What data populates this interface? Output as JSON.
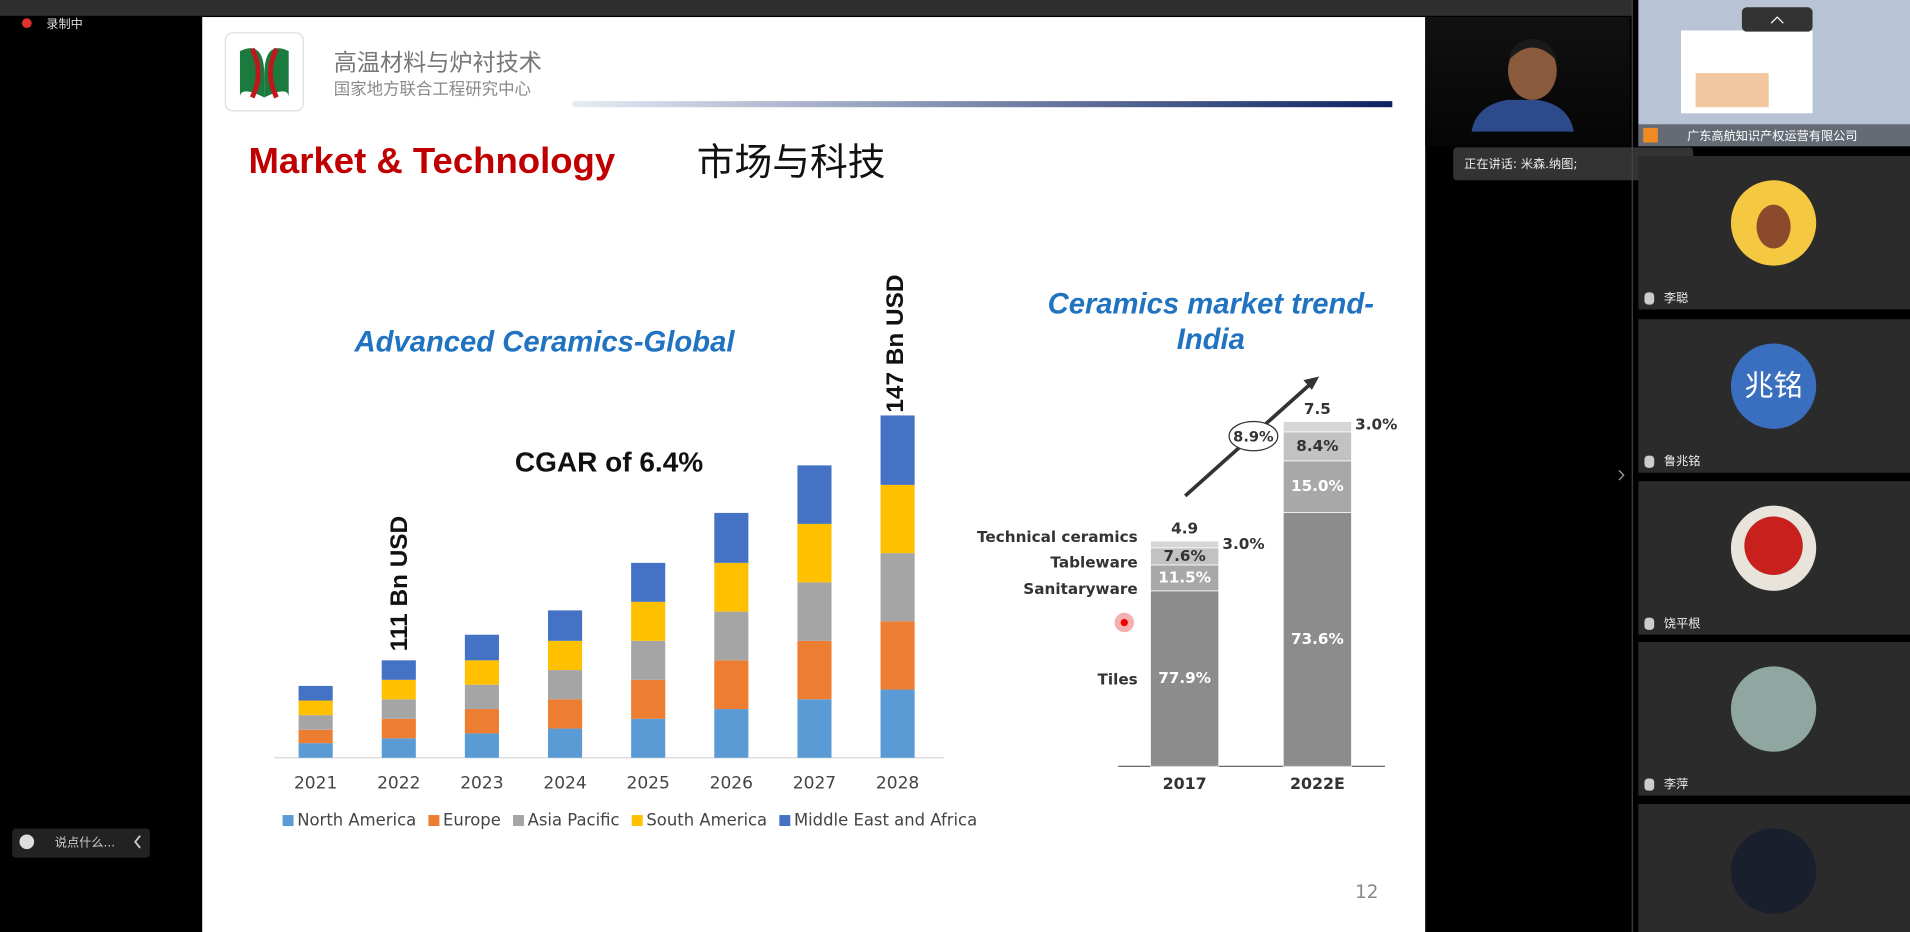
{
  "ui": {
    "recording": "录制中",
    "chat_placeholder": "说点什么...",
    "speaking": "正在讲话: 米森.纳图;",
    "share_owner": "广东高航知识产权运营有限公司",
    "participants": [
      {
        "name": "李聪"
      },
      {
        "name": "鲁兆铭",
        "avatar_text": "兆铭"
      },
      {
        "name": "饶平根"
      },
      {
        "name": "李萍"
      }
    ]
  },
  "slide": {
    "org_name": "高温材料与炉衬技术",
    "org_subtitle": "国家地方联合工程研究中心",
    "title": "Market & Technology",
    "title_cn": "市场与科技",
    "page_number": 12
  },
  "chart_data": [
    {
      "type": "stacked-bar",
      "title": "Advanced Ceramics-Global",
      "categories": [
        "2021",
        "2022",
        "2023",
        "2024",
        "2025",
        "2026",
        "2027",
        "2028"
      ],
      "series": [
        {
          "name": "North America",
          "color": "#5b9bd5",
          "values": [
            12,
            16,
            20,
            24,
            32,
            40,
            48,
            56
          ]
        },
        {
          "name": "Europe",
          "color": "#ed7d31",
          "values": [
            11,
            16,
            20,
            24,
            32,
            40,
            48,
            56
          ]
        },
        {
          "name": "Asia Pacific",
          "color": "#a5a5a5",
          "values": [
            12,
            16,
            20,
            24,
            32,
            40,
            48,
            56
          ]
        },
        {
          "name": "South America",
          "color": "#ffc000",
          "values": [
            12,
            16,
            20,
            24,
            32,
            40,
            48,
            56
          ]
        },
        {
          "name": "Middle East and Africa",
          "color": "#4472c4",
          "values": [
            12,
            16,
            21,
            25,
            32,
            41,
            48,
            57
          ]
        }
      ],
      "annotations": [
        "111 Bn USD",
        "147 Bn USD",
        "CGAR of 6.4%"
      ]
    },
    {
      "type": "share-bar",
      "title": [
        "Ceramics market trend-",
        "India"
      ],
      "categories": [
        "2017",
        "2022E"
      ],
      "totals": [
        4.9,
        7.5
      ],
      "series": [
        {
          "name": "Tiles",
          "color": "#8c8c8c",
          "values": [
            77.9,
            73.6
          ],
          "value_labels": [
            "77.9%",
            "73.6%"
          ]
        },
        {
          "name": "Sanitaryware",
          "color": "#a8a8a8",
          "values": [
            11.5,
            15.0
          ],
          "value_labels": [
            "11.5%",
            "15.0%"
          ]
        },
        {
          "name": "Tableware",
          "color": "#c2c2c2",
          "values": [
            7.6,
            8.4
          ],
          "value_labels": [
            "7.6%",
            "8.4%"
          ]
        },
        {
          "name": "Technical ceramics",
          "color": "#d6d6d6",
          "values": [
            3.0,
            3.0
          ],
          "value_labels": [
            "3.0%",
            "3.0%"
          ]
        }
      ],
      "annotations": [
        "8.9%"
      ]
    }
  ]
}
